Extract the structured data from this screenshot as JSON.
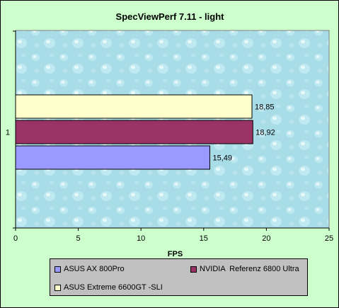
{
  "chart_data": {
    "type": "bar",
    "orientation": "horizontal",
    "title": "SpecViewPerf 7.11 - light",
    "xlabel": "FPS",
    "ylabel": "",
    "categories": [
      "1"
    ],
    "xlim": [
      0,
      25
    ],
    "xticks": [
      0,
      5,
      10,
      15,
      20,
      25
    ],
    "grid": false,
    "legend_position": "bottom",
    "series": [
      {
        "name": "ASUS AX 800Pro",
        "values": [
          15.49
        ],
        "label": "15,49",
        "color": "#9999ff"
      },
      {
        "name": "NVIDIA  Referenz 6800 Ultra",
        "values": [
          18.92
        ],
        "label": "18,92",
        "color": "#993366"
      },
      {
        "name": "ASUS Extreme 6600GT -SLI",
        "values": [
          18.85
        ],
        "label": "18,85",
        "color": "#ffffcc"
      }
    ],
    "colors": {
      "background": "#ccffcc",
      "plot_area": "#a8dde8",
      "legend_background": "#c0c0c0"
    }
  }
}
